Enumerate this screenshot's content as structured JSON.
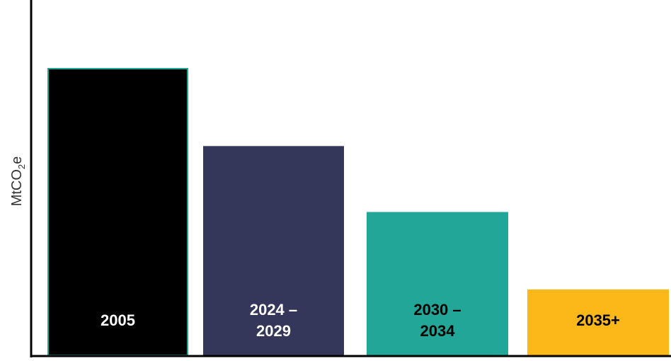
{
  "chart_data": {
    "type": "bar",
    "categories": [
      [
        "2005"
      ],
      [
        "2024 –",
        "2029"
      ],
      [
        "2030 –",
        "2034"
      ],
      [
        "2035+"
      ]
    ],
    "values": [
      100,
      73,
      50,
      23
    ],
    "ylabel": {
      "main": "MtCO",
      "subscript": "2",
      "suffix": "e"
    },
    "title": "",
    "xlabel": "",
    "ylim": [
      0,
      100
    ],
    "grid": false,
    "show_ticks": false,
    "colors": [
      "#000000",
      "#35375a",
      "#21a697",
      "#fbb818"
    ],
    "bar_outline_color": "#21a697",
    "label_colors": [
      "#ffffff",
      "#ffffff",
      "#000000",
      "#000000"
    ],
    "axis_color": "#000000"
  }
}
